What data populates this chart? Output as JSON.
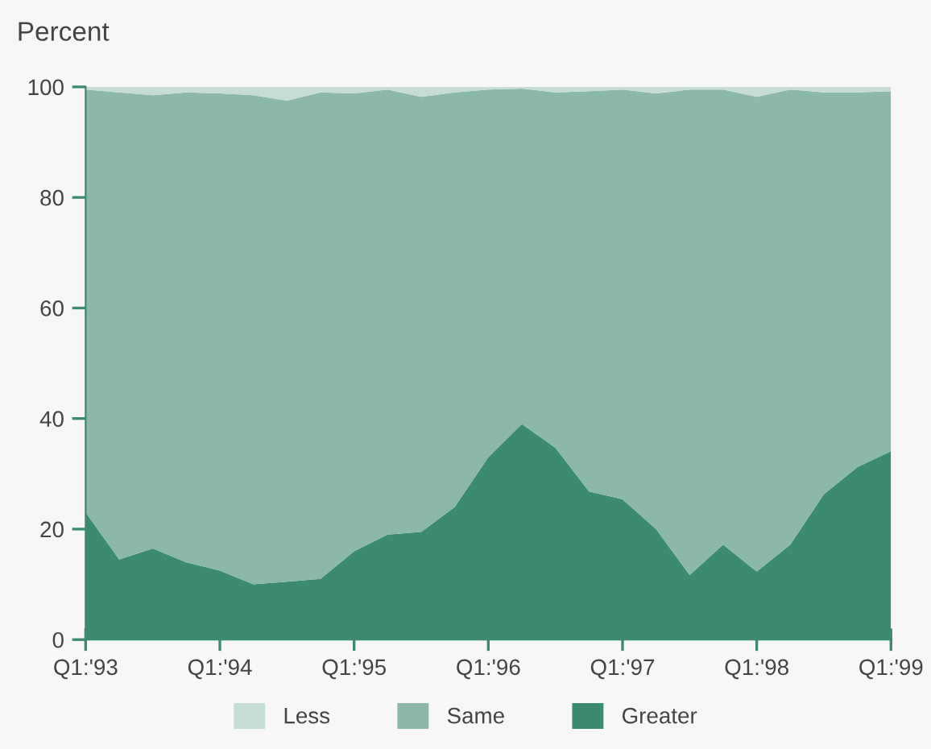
{
  "chart_data": {
    "type": "area",
    "stacked": true,
    "ylabel": "Percent",
    "categories": [
      "Q1:'93",
      null,
      null,
      null,
      "Q1:'94",
      null,
      null,
      null,
      "Q1:'95",
      null,
      null,
      null,
      "Q1:'96",
      null,
      null,
      null,
      "Q1:'97",
      null,
      null,
      null,
      "Q1:'98",
      null,
      null,
      null,
      "Q1:'99"
    ],
    "series": [
      {
        "name": "Greater",
        "color": "#3d8a72",
        "values": [
          23,
          14.5,
          16.5,
          14,
          12.5,
          10,
          10.5,
          11,
          16,
          19,
          19.5,
          24,
          33,
          39,
          34.7,
          26.8,
          25.4,
          20,
          11.7,
          17.2,
          12.3,
          17.2,
          26.3,
          31.2,
          34.1
        ]
      },
      {
        "name": "Same",
        "color": "#8cb8ab",
        "values": [
          76.5,
          84.5,
          82,
          85,
          86.3,
          88.5,
          87,
          88,
          82.8,
          80.5,
          78.7,
          75,
          66.5,
          60.7,
          64.3,
          72.4,
          74.1,
          78.8,
          87.8,
          82.3,
          85.9,
          82.3,
          72.7,
          67.8,
          65.1
        ]
      },
      {
        "name": "Less",
        "color": "#c5ddd6",
        "values": [
          0.5,
          1,
          1.5,
          1,
          1.2,
          1.5,
          2.5,
          1,
          1.2,
          0.5,
          1.8,
          1,
          0.5,
          0.3,
          1,
          0.8,
          0.5,
          1.2,
          0.5,
          0.5,
          1.8,
          0.5,
          1,
          1,
          0.8
        ]
      }
    ],
    "ylim": [
      0,
      100
    ],
    "yticks": [
      0,
      20,
      40,
      60,
      80,
      100
    ],
    "grid": false,
    "legend": "bottom"
  }
}
